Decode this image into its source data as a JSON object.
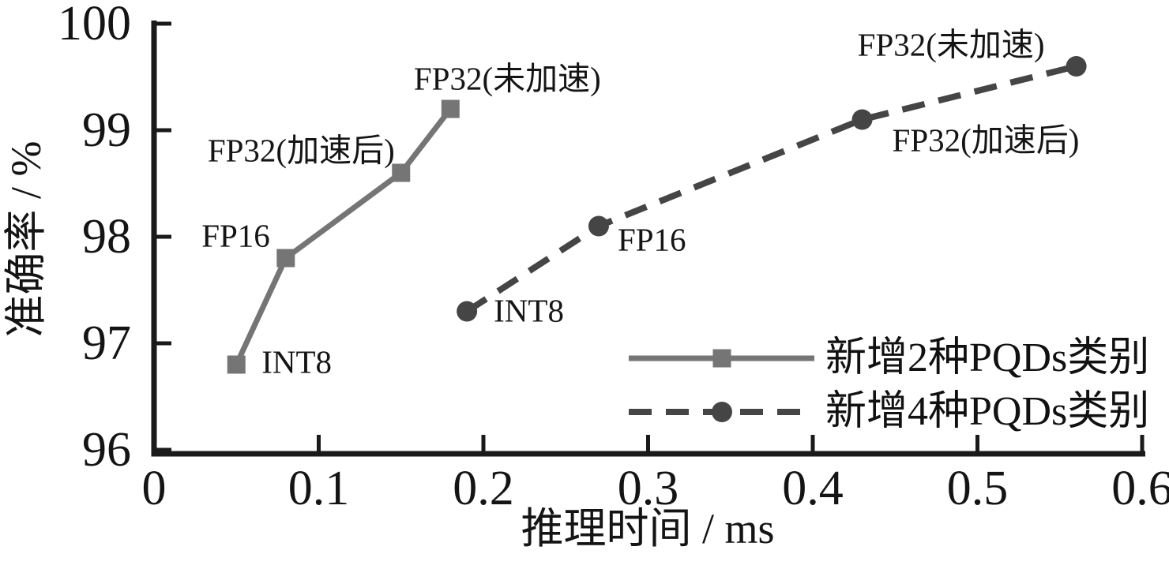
{
  "chart_data": {
    "type": "line",
    "title": "",
    "xlabel": "推理时间 / ms",
    "ylabel": "准确率 / %",
    "xlim": [
      0,
      0.6
    ],
    "ylim": [
      96,
      100
    ],
    "x_tick_labels": [
      "0",
      "0.1",
      "0.2",
      "0.3",
      "0.4",
      "0.5",
      "0.6"
    ],
    "y_tick_labels": [
      "96",
      "97",
      "98",
      "99",
      "100"
    ],
    "grid": false,
    "legend_position": "lower-right-inside",
    "axis_color": "#1a1a1a",
    "series": [
      {
        "name": "新增2种PQDs类别",
        "line_style": "solid",
        "marker": "square",
        "color": "#757575",
        "marker_color": "#757575",
        "points": [
          {
            "x": 0.05,
            "y": 96.8,
            "label": "INT8",
            "anchor": "start",
            "dx": 32,
            "dy": -3
          },
          {
            "x": 0.08,
            "y": 97.8,
            "label": "FP16",
            "anchor": "end",
            "dx": -20,
            "dy": -28
          },
          {
            "x": 0.15,
            "y": 98.6,
            "label": "FP32(加速后)",
            "anchor": "end",
            "dx": -8,
            "dy": -28
          },
          {
            "x": 0.18,
            "y": 99.2,
            "label": "FP32(未加速)",
            "anchor": "middle",
            "dx": 72,
            "dy": -38
          }
        ]
      },
      {
        "name": "新增4种PQDs类别",
        "line_style": "dashed",
        "marker": "circle",
        "color": "#454545",
        "marker_color": "#454545",
        "points": [
          {
            "x": 0.19,
            "y": 97.3,
            "label": "INT8",
            "anchor": "start",
            "dx": 34,
            "dy": -1
          },
          {
            "x": 0.27,
            "y": 98.1,
            "label": "FP16",
            "anchor": "start",
            "dx": 24,
            "dy": 17
          },
          {
            "x": 0.43,
            "y": 99.1,
            "label": "FP32(加速后)",
            "anchor": "start",
            "dx": 38,
            "dy": 26
          },
          {
            "x": 0.56,
            "y": 99.6,
            "label": "FP32(未加速)",
            "anchor": "end",
            "dx": -40,
            "dy": -27
          }
        ]
      }
    ]
  }
}
